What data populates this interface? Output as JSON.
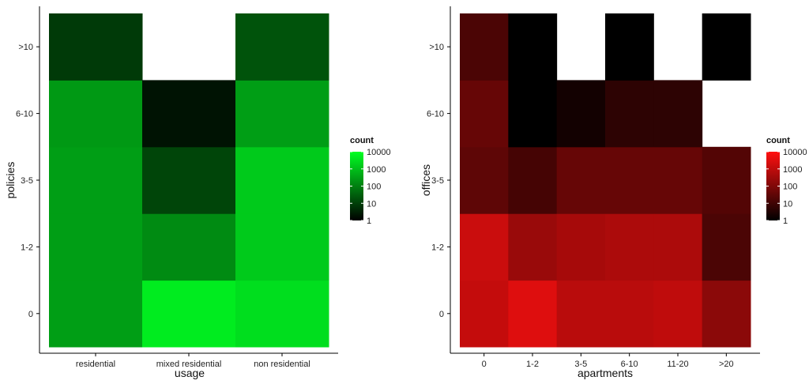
{
  "chart_data": [
    {
      "type": "heatmap",
      "xlabel": "usage",
      "ylabel": "policies",
      "x_categories": [
        "residential",
        "mixed residential",
        "non residential"
      ],
      "y_categories": [
        "0",
        "1-2",
        "3-5",
        "6-10",
        ">10"
      ],
      "color_scale": {
        "low": "#000000",
        "high": "#00ff22",
        "transform": "log10",
        "range": [
          1,
          10000
        ]
      },
      "cells": [
        {
          "x": "residential",
          "y": "0",
          "count": 300
        },
        {
          "x": "residential",
          "y": "1-2",
          "count": 300
        },
        {
          "x": "residential",
          "y": "3-5",
          "count": 300
        },
        {
          "x": "residential",
          "y": "6-10",
          "count": 250
        },
        {
          "x": "residential",
          "y": ">10",
          "count": 8
        },
        {
          "x": "mixed residential",
          "y": "0",
          "count": 5000
        },
        {
          "x": "mixed residential",
          "y": "1-2",
          "count": 150
        },
        {
          "x": "mixed residential",
          "y": "3-5",
          "count": 12
        },
        {
          "x": "mixed residential",
          "y": "6-10",
          "count": 2
        },
        {
          "x": "non residential",
          "y": "0",
          "count": 3000
        },
        {
          "x": "non residential",
          "y": "1-2",
          "count": 1500
        },
        {
          "x": "non residential",
          "y": "3-5",
          "count": 1500
        },
        {
          "x": "non residential",
          "y": "6-10",
          "count": 300
        },
        {
          "x": "non residential",
          "y": ">10",
          "count": 20
        }
      ],
      "legend": {
        "title": "count",
        "labels": [
          "10000",
          "1000",
          "100",
          "10",
          "1"
        ],
        "position": "right"
      }
    },
    {
      "type": "heatmap",
      "xlabel": "apartments",
      "ylabel": "offices",
      "x_categories": [
        "0",
        "1-2",
        "3-5",
        "6-10",
        "11-20",
        ">20"
      ],
      "y_categories": [
        "0",
        "1-2",
        "3-5",
        "6-10",
        ">10"
      ],
      "color_scale": {
        "low": "#000000",
        "high": "#ff1010",
        "transform": "log10",
        "range": [
          1,
          10000
        ]
      },
      "cells": [
        {
          "x": "0",
          "y": "0",
          "count": 1200
        },
        {
          "x": "0",
          "y": "1-2",
          "count": 1500
        },
        {
          "x": "0",
          "y": "3-5",
          "count": 30
        },
        {
          "x": "0",
          "y": "6-10",
          "count": 40
        },
        {
          "x": "0",
          "y": ">10",
          "count": 15
        },
        {
          "x": "1-2",
          "y": "0",
          "count": 3000
        },
        {
          "x": "1-2",
          "y": "1-2",
          "count": 250
        },
        {
          "x": "1-2",
          "y": "3-5",
          "count": 12
        },
        {
          "x": "1-2",
          "y": "6-10",
          "count": 1
        },
        {
          "x": "1-2",
          "y": ">10",
          "count": 1
        },
        {
          "x": "3-5",
          "y": "0",
          "count": 800
        },
        {
          "x": "3-5",
          "y": "1-2",
          "count": 400
        },
        {
          "x": "3-5",
          "y": "3-5",
          "count": 40
        },
        {
          "x": "3-5",
          "y": "6-10",
          "count": 2
        },
        {
          "x": "6-10",
          "y": "0",
          "count": 800
        },
        {
          "x": "6-10",
          "y": "1-2",
          "count": 500
        },
        {
          "x": "6-10",
          "y": "3-5",
          "count": 40
        },
        {
          "x": "6-10",
          "y": "6-10",
          "count": 5
        },
        {
          "x": "6-10",
          "y": ">10",
          "count": 1
        },
        {
          "x": "11-20",
          "y": "0",
          "count": 1000
        },
        {
          "x": "11-20",
          "y": "1-2",
          "count": 500
        },
        {
          "x": "11-20",
          "y": "3-5",
          "count": 40
        },
        {
          "x": "11-20",
          "y": "6-10",
          "count": 5
        },
        {
          "x": "11-20",
          "y": ">10",
          "count": null
        },
        {
          "x": ">20",
          "y": "0",
          "count": 150
        },
        {
          "x": ">20",
          "y": "1-2",
          "count": 15
        },
        {
          "x": ">20",
          "y": "3-5",
          "count": 20
        },
        {
          "x": ">20",
          "y": ">10",
          "count": 1
        }
      ],
      "legend": {
        "title": "count",
        "labels": [
          "10000",
          "1000",
          "100",
          "10",
          "1"
        ],
        "position": "right"
      }
    }
  ]
}
